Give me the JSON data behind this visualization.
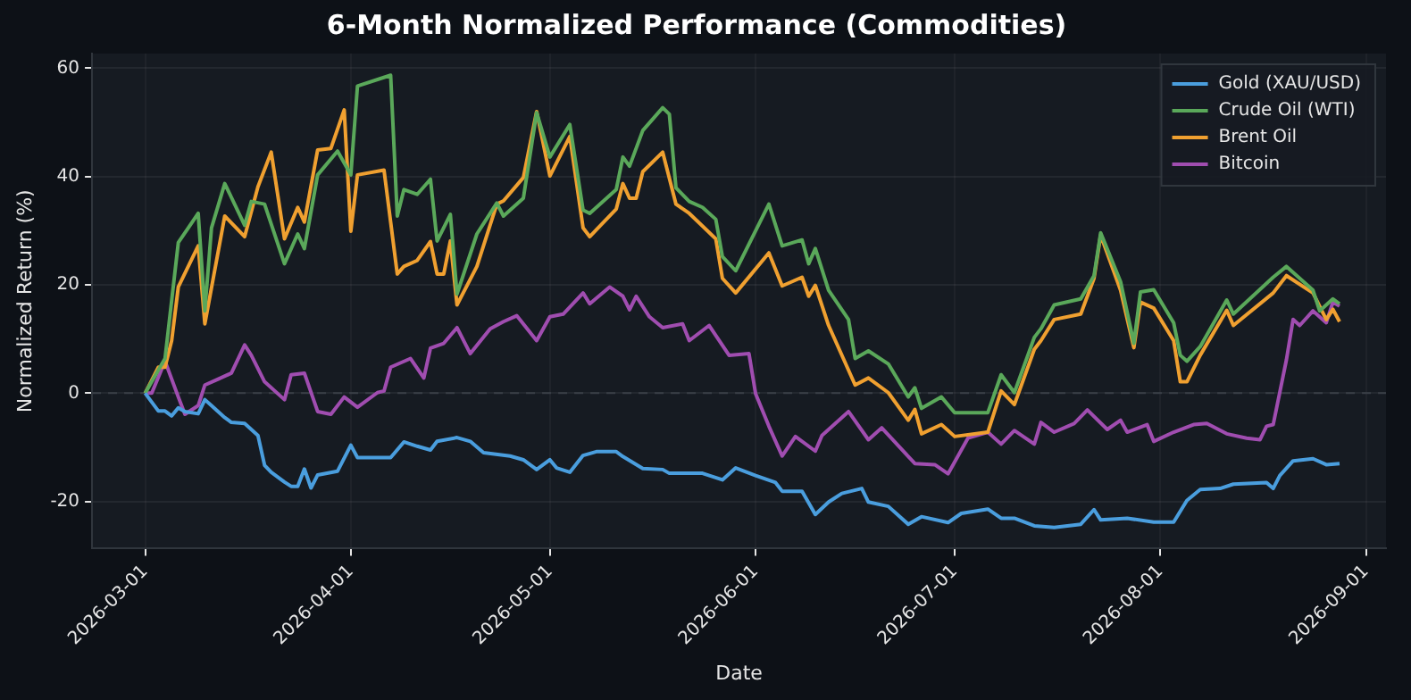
{
  "chart_data": {
    "type": "line",
    "title": "6-Month Normalized Performance (Commodities)",
    "xlabel": "Date",
    "ylabel": "Normalized Return (%)",
    "xlim": [
      "2026-02-21",
      "2026-09-04"
    ],
    "xticks": [
      "2026-03-01",
      "2026-04-01",
      "2026-05-01",
      "2026-06-01",
      "2026-07-01",
      "2026-08-01",
      "2026-09-01"
    ],
    "ylim": [
      -28.7,
      62.7
    ],
    "yticks": [
      -20,
      0,
      20,
      40,
      60
    ],
    "grid": true,
    "legend": "top right",
    "line_style": "solid",
    "marker": "none",
    "ref_lines": [
      {
        "axis": "y",
        "value": 0,
        "color": "#3a3f47",
        "line_style": "dashed"
      }
    ],
    "series": [
      {
        "name": "Gold (XAU/USD)",
        "color": "#4a9ede",
        "x": [
          "2026-03-01",
          "2026-03-03",
          "2026-03-04",
          "2026-03-05",
          "2026-03-06",
          "2026-03-07",
          "2026-03-09",
          "2026-03-10",
          "2026-03-11",
          "2026-03-13",
          "2026-03-14",
          "2026-03-16",
          "2026-03-18",
          "2026-03-19",
          "2026-03-20",
          "2026-03-22",
          "2026-03-23",
          "2026-03-24",
          "2026-03-25",
          "2026-03-26",
          "2026-03-27",
          "2026-03-30",
          "2026-04-01",
          "2026-04-02",
          "2026-04-07",
          "2026-04-09",
          "2026-04-11",
          "2026-04-13",
          "2026-04-14",
          "2026-04-17",
          "2026-04-19",
          "2026-04-21",
          "2026-04-25",
          "2026-04-27",
          "2026-04-29",
          "2026-05-01",
          "2026-05-02",
          "2026-05-04",
          "2026-05-06",
          "2026-05-08",
          "2026-05-11",
          "2026-05-12",
          "2026-05-15",
          "2026-05-18",
          "2026-05-19",
          "2026-05-24",
          "2026-05-27",
          "2026-05-29",
          "2026-06-01",
          "2026-06-04",
          "2026-06-05",
          "2026-06-08",
          "2026-06-10",
          "2026-06-12",
          "2026-06-14",
          "2026-06-17",
          "2026-06-18",
          "2026-06-21",
          "2026-06-24",
          "2026-06-26",
          "2026-06-30",
          "2026-07-02",
          "2026-07-06",
          "2026-07-08",
          "2026-07-10",
          "2026-07-13",
          "2026-07-16",
          "2026-07-20",
          "2026-07-22",
          "2026-07-23",
          "2026-07-27",
          "2026-07-31",
          "2026-08-03",
          "2026-08-05",
          "2026-08-07",
          "2026-08-10",
          "2026-08-12",
          "2026-08-17",
          "2026-08-18",
          "2026-08-19",
          "2026-08-21",
          "2026-08-24",
          "2026-08-26",
          "2026-08-28"
        ],
        "values": [
          0,
          -3.3,
          -3.3,
          -4.2,
          -2.7,
          -3.4,
          -3.8,
          -1.2,
          -2.3,
          -4.5,
          -5.4,
          -5.6,
          -7.8,
          -13.3,
          -14.6,
          -16.4,
          -17.2,
          -17.2,
          -14,
          -17.5,
          -15.1,
          -14.4,
          -9.6,
          -11.9,
          -11.9,
          -9,
          -9.8,
          -10.5,
          -8.9,
          -8.2,
          -8.9,
          -11,
          -11.6,
          -12.3,
          -14.1,
          -12.3,
          -13.8,
          -14.6,
          -11.5,
          -10.8,
          -10.8,
          -11.7,
          -13.9,
          -14.1,
          -14.8,
          -14.8,
          -16,
          -13.8,
          -15.2,
          -16.5,
          -18.1,
          -18.1,
          -22.4,
          -20.1,
          -18.5,
          -17.6,
          -20.1,
          -20.9,
          -24.2,
          -22.8,
          -23.9,
          -22.2,
          -21.4,
          -23.1,
          -23.1,
          -24.5,
          -24.8,
          -24.2,
          -21.5,
          -23.4,
          -23.1,
          -23.8,
          -23.8,
          -19.8,
          -17.8,
          -17.6,
          -16.8,
          -16.5,
          -17.6,
          -15.2,
          -12.5,
          -12.1,
          -13.2,
          -13
        ]
      },
      {
        "name": "Crude Oil (WTI)",
        "color": "#5aa85a",
        "x": [
          "2026-03-01",
          "2026-03-04",
          "2026-03-06",
          "2026-03-09",
          "2026-03-10",
          "2026-03-11",
          "2026-03-13",
          "2026-03-16",
          "2026-03-17",
          "2026-03-19",
          "2026-03-22",
          "2026-03-24",
          "2026-03-25",
          "2026-03-27",
          "2026-03-30",
          "2026-04-01",
          "2026-04-02",
          "2026-04-07",
          "2026-04-08",
          "2026-04-09",
          "2026-04-11",
          "2026-04-13",
          "2026-04-14",
          "2026-04-16",
          "2026-04-17",
          "2026-04-20",
          "2026-04-23",
          "2026-04-24",
          "2026-04-27",
          "2026-04-29",
          "2026-05-01",
          "2026-05-04",
          "2026-05-06",
          "2026-05-07",
          "2026-05-11",
          "2026-05-12",
          "2026-05-13",
          "2026-05-15",
          "2026-05-18",
          "2026-05-19",
          "2026-05-20",
          "2026-05-22",
          "2026-05-24",
          "2026-05-26",
          "2026-05-27",
          "2026-05-29",
          "2026-06-03",
          "2026-06-05",
          "2026-06-08",
          "2026-06-09",
          "2026-06-10",
          "2026-06-12",
          "2026-06-15",
          "2026-06-16",
          "2026-06-18",
          "2026-06-21",
          "2026-06-24",
          "2026-06-25",
          "2026-06-26",
          "2026-06-29",
          "2026-07-01",
          "2026-07-06",
          "2026-07-08",
          "2026-07-10",
          "2026-07-13",
          "2026-07-14",
          "2026-07-16",
          "2026-07-20",
          "2026-07-22",
          "2026-07-23",
          "2026-07-26",
          "2026-07-28",
          "2026-07-29",
          "2026-07-31",
          "2026-08-03",
          "2026-08-04",
          "2026-08-05",
          "2026-08-07",
          "2026-08-11",
          "2026-08-12",
          "2026-08-18",
          "2026-08-20",
          "2026-08-24",
          "2026-08-25",
          "2026-08-27",
          "2026-08-28"
        ],
        "values": [
          0,
          6.4,
          27.8,
          33.2,
          15.2,
          30.5,
          38.7,
          31,
          35.4,
          34.9,
          23.9,
          29.4,
          26.7,
          40.3,
          44.7,
          40.3,
          56.7,
          58.7,
          32.7,
          37.6,
          36.7,
          39.5,
          28.1,
          33,
          18.3,
          29.4,
          35.1,
          32.7,
          36,
          51.8,
          43.6,
          49.6,
          33.8,
          33.2,
          37.6,
          43.6,
          41.9,
          48.5,
          52.7,
          51.5,
          37.9,
          35.4,
          34.3,
          32.1,
          25.2,
          22.6,
          34.9,
          27.2,
          28.3,
          23.9,
          26.7,
          19,
          13.6,
          6.4,
          7.8,
          5.4,
          -0.7,
          1,
          -2.8,
          -0.7,
          -3.6,
          -3.6,
          3.4,
          0.1,
          10.3,
          11.9,
          16.3,
          17.4,
          21.7,
          29.6,
          20.6,
          9.2,
          18.7,
          19.1,
          13,
          7,
          5.9,
          8.6,
          17.2,
          14.6,
          21.4,
          23.4,
          19,
          15.2,
          17.4,
          16.5
        ]
      },
      {
        "name": "Brent Oil",
        "color": "#f0a030",
        "x": [
          "2026-03-01",
          "2026-03-03",
          "2026-03-04",
          "2026-03-05",
          "2026-03-06",
          "2026-03-09",
          "2026-03-10",
          "2026-03-13",
          "2026-03-16",
          "2026-03-18",
          "2026-03-20",
          "2026-03-22",
          "2026-03-24",
          "2026-03-25",
          "2026-03-27",
          "2026-03-29",
          "2026-03-31",
          "2026-04-01",
          "2026-04-02",
          "2026-04-06",
          "2026-04-08",
          "2026-04-09",
          "2026-04-11",
          "2026-04-13",
          "2026-04-14",
          "2026-04-15",
          "2026-04-16",
          "2026-04-17",
          "2026-04-20",
          "2026-04-23",
          "2026-04-24",
          "2026-04-27",
          "2026-04-29",
          "2026-05-01",
          "2026-05-04",
          "2026-05-06",
          "2026-05-07",
          "2026-05-11",
          "2026-05-12",
          "2026-05-13",
          "2026-05-14",
          "2026-05-15",
          "2026-05-18",
          "2026-05-20",
          "2026-05-22",
          "2026-05-26",
          "2026-05-27",
          "2026-05-29",
          "2026-06-03",
          "2026-06-05",
          "2026-06-08",
          "2026-06-09",
          "2026-06-10",
          "2026-06-12",
          "2026-06-16",
          "2026-06-18",
          "2026-06-21",
          "2026-06-24",
          "2026-06-25",
          "2026-06-26",
          "2026-06-29",
          "2026-07-01",
          "2026-07-06",
          "2026-07-08",
          "2026-07-10",
          "2026-07-13",
          "2026-07-14",
          "2026-07-16",
          "2026-07-20",
          "2026-07-22",
          "2026-07-23",
          "2026-07-26",
          "2026-07-28",
          "2026-07-29",
          "2026-07-31",
          "2026-08-03",
          "2026-08-04",
          "2026-08-05",
          "2026-08-07",
          "2026-08-11",
          "2026-08-12",
          "2026-08-18",
          "2026-08-20",
          "2026-08-24",
          "2026-08-26",
          "2026-08-27",
          "2026-08-28"
        ],
        "values": [
          0,
          4.8,
          4.8,
          9.7,
          19.6,
          27.2,
          12.8,
          32.7,
          28.9,
          38.1,
          44.5,
          28.5,
          34.3,
          31.6,
          44.9,
          45.2,
          52.3,
          29.9,
          40.3,
          41.2,
          22,
          23.4,
          24.5,
          28,
          22,
          22,
          28.1,
          16.3,
          23.4,
          34.9,
          35.5,
          39.8,
          52,
          40.1,
          47.4,
          30.5,
          28.9,
          34,
          38.7,
          36,
          36,
          40.9,
          44.5,
          34.9,
          33.2,
          28.5,
          21.2,
          18.5,
          25.9,
          19.8,
          21.4,
          17.9,
          19.9,
          12.5,
          1.5,
          2.8,
          0.1,
          -5,
          -3,
          -7.5,
          -5.8,
          -8,
          -7.2,
          0.4,
          -2.1,
          8.1,
          9.7,
          13.6,
          14.6,
          21.2,
          29.2,
          19,
          8.4,
          16.8,
          15.7,
          9.7,
          2.1,
          2.1,
          7,
          15.3,
          12.5,
          18.5,
          21.7,
          18.5,
          13.6,
          15.5,
          13.2
        ]
      },
      {
        "name": "Bitcoin",
        "color": "#a04db0",
        "x": [
          "2026-03-01",
          "2026-03-02",
          "2026-03-04",
          "2026-03-06",
          "2026-03-07",
          "2026-03-09",
          "2026-03-10",
          "2026-03-12",
          "2026-03-14",
          "2026-03-16",
          "2026-03-17",
          "2026-03-19",
          "2026-03-22",
          "2026-03-23",
          "2026-03-25",
          "2026-03-27",
          "2026-03-29",
          "2026-03-31",
          "2026-04-02",
          "2026-04-05",
          "2026-04-06",
          "2026-04-07",
          "2026-04-10",
          "2026-04-12",
          "2026-04-13",
          "2026-04-15",
          "2026-04-17",
          "2026-04-19",
          "2026-04-22",
          "2026-04-24",
          "2026-04-26",
          "2026-04-29",
          "2026-05-01",
          "2026-05-03",
          "2026-05-06",
          "2026-05-07",
          "2026-05-10",
          "2026-05-12",
          "2026-05-13",
          "2026-05-14",
          "2026-05-16",
          "2026-05-18",
          "2026-05-21",
          "2026-05-22",
          "2026-05-25",
          "2026-05-28",
          "2026-05-31",
          "2026-06-01",
          "2026-06-03",
          "2026-06-05",
          "2026-06-07",
          "2026-06-10",
          "2026-06-11",
          "2026-06-15",
          "2026-06-18",
          "2026-06-20",
          "2026-06-25",
          "2026-06-28",
          "2026-06-30",
          "2026-07-03",
          "2026-07-06",
          "2026-07-08",
          "2026-07-10",
          "2026-07-13",
          "2026-07-14",
          "2026-07-16",
          "2026-07-19",
          "2026-07-21",
          "2026-07-24",
          "2026-07-26",
          "2026-07-27",
          "2026-07-30",
          "2026-07-31",
          "2026-08-03",
          "2026-08-06",
          "2026-08-08",
          "2026-08-11",
          "2026-08-14",
          "2026-08-16",
          "2026-08-17",
          "2026-08-18",
          "2026-08-20",
          "2026-08-21",
          "2026-08-22",
          "2026-08-24",
          "2026-08-26",
          "2026-08-27",
          "2026-08-28"
        ],
        "values": [
          0,
          0,
          5.9,
          -0.7,
          -3.9,
          -2.3,
          1.5,
          2.6,
          3.7,
          8.9,
          7,
          2.1,
          -1.2,
          3.4,
          3.7,
          -3.4,
          -3.9,
          -0.7,
          -2.6,
          0.1,
          0.4,
          4.8,
          6.4,
          2.8,
          8.3,
          9.2,
          12.1,
          7.3,
          11.9,
          13.2,
          14.3,
          9.7,
          14.1,
          14.6,
          18.5,
          16.5,
          19.6,
          17.9,
          15.4,
          17.9,
          14.1,
          12.1,
          12.8,
          9.7,
          12.5,
          7,
          7.3,
          -0.1,
          -6.1,
          -11.6,
          -8,
          -10.7,
          -7.8,
          -3.4,
          -8.6,
          -6.4,
          -13,
          -13.2,
          -14.9,
          -8.3,
          -7.2,
          -9.4,
          -6.9,
          -9.4,
          -5.4,
          -7.2,
          -5.6,
          -3.1,
          -6.7,
          -5,
          -7.2,
          -5.8,
          -8.9,
          -7.2,
          -5.8,
          -5.6,
          -7.5,
          -8.3,
          -8.6,
          -6.1,
          -5.8,
          6.2,
          13.6,
          12.5,
          15.2,
          13,
          16.8,
          16.1
        ]
      }
    ]
  }
}
